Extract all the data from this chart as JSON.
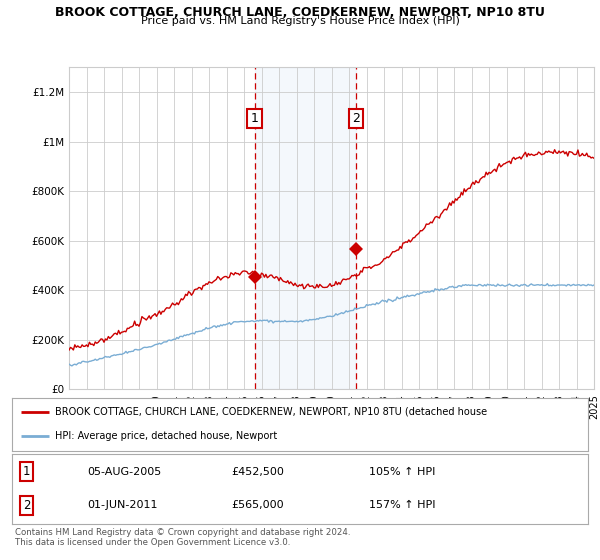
{
  "title1": "BROOK COTTAGE, CHURCH LANE, COEDKERNEW, NEWPORT, NP10 8TU",
  "title2": "Price paid vs. HM Land Registry's House Price Index (HPI)",
  "background_color": "#ffffff",
  "plot_bg_color": "#ffffff",
  "grid_color": "#cccccc",
  "hpi_color": "#7aadd4",
  "price_color": "#cc0000",
  "sale1_year": 2005.6,
  "sale1_price": 452500,
  "sale2_year": 2011.42,
  "sale2_price": 565000,
  "legend_line1": "BROOK COTTAGE, CHURCH LANE, COEDKERNEW, NEWPORT, NP10 8TU (detached house",
  "legend_line2": "HPI: Average price, detached house, Newport",
  "table_row1": [
    "1",
    "05-AUG-2005",
    "£452,500",
    "105% ↑ HPI"
  ],
  "table_row2": [
    "2",
    "01-JUN-2011",
    "£565,000",
    "157% ↑ HPI"
  ],
  "footnote": "Contains HM Land Registry data © Crown copyright and database right 2024.\nThis data is licensed under the Open Government Licence v3.0.",
  "ylim_max": 1300000,
  "x_start_year": 1995,
  "x_end_year": 2025
}
